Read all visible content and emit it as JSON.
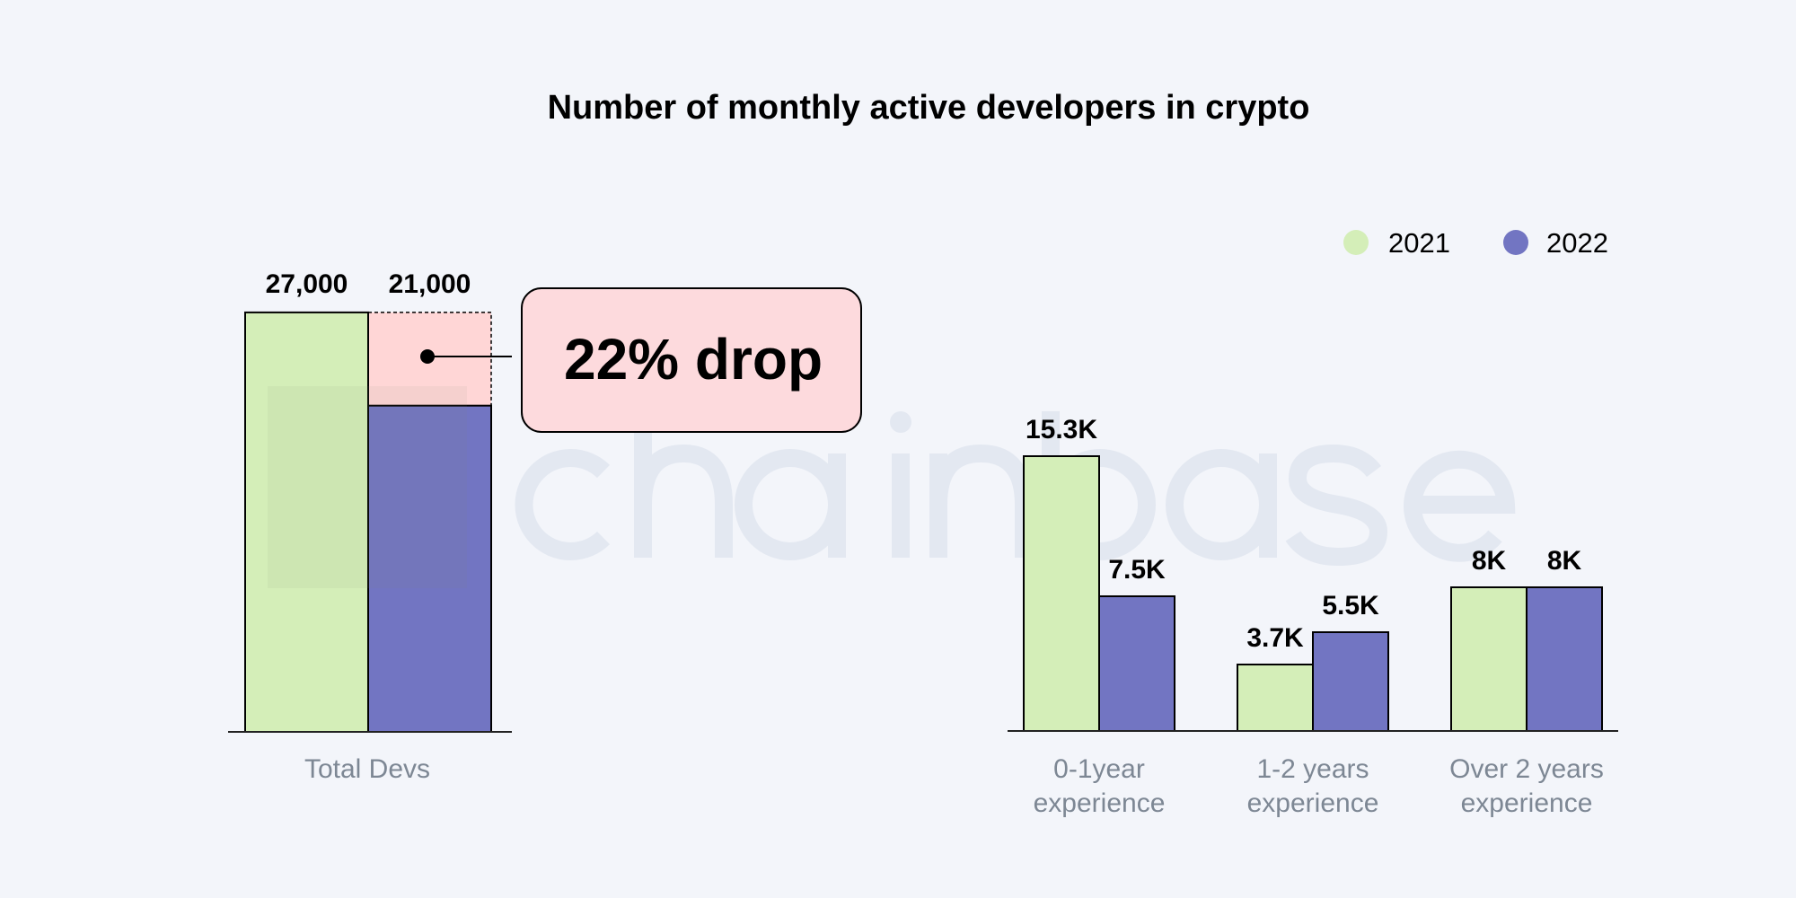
{
  "chart_data": [
    {
      "type": "bar",
      "title": "Number of monthly active developers in crypto",
      "categories": [
        "Total Devs"
      ],
      "series": [
        {
          "name": "2021",
          "values": [
            27000
          ],
          "labels": [
            "27,000"
          ]
        },
        {
          "name": "2022",
          "values": [
            21000
          ],
          "labels": [
            "21,000"
          ]
        }
      ],
      "annotation": "22% drop",
      "ylim": [
        0,
        30000
      ]
    },
    {
      "type": "bar",
      "categories": [
        [
          "0-1year",
          "experience"
        ],
        [
          "1-2 years",
          "experience"
        ],
        [
          "Over 2 years",
          "experience"
        ]
      ],
      "series": [
        {
          "name": "2021",
          "values": [
            15300,
            3700,
            8000
          ],
          "labels": [
            "15.3K",
            "3.7K",
            "8K"
          ]
        },
        {
          "name": "2022",
          "values": [
            7500,
            5500,
            8000
          ],
          "labels": [
            "7.5K",
            "5.5K",
            "8K"
          ]
        }
      ],
      "legend": "top-right",
      "ylim": [
        0,
        20000
      ]
    }
  ],
  "colors": {
    "2021": "#d4eeb8",
    "2022": "#7275c2",
    "drop": "#ffd6d6",
    "callout": "#fddadd",
    "background": "#f3f5fa",
    "watermark": "#e3e8f1"
  },
  "watermark": "chainbase"
}
